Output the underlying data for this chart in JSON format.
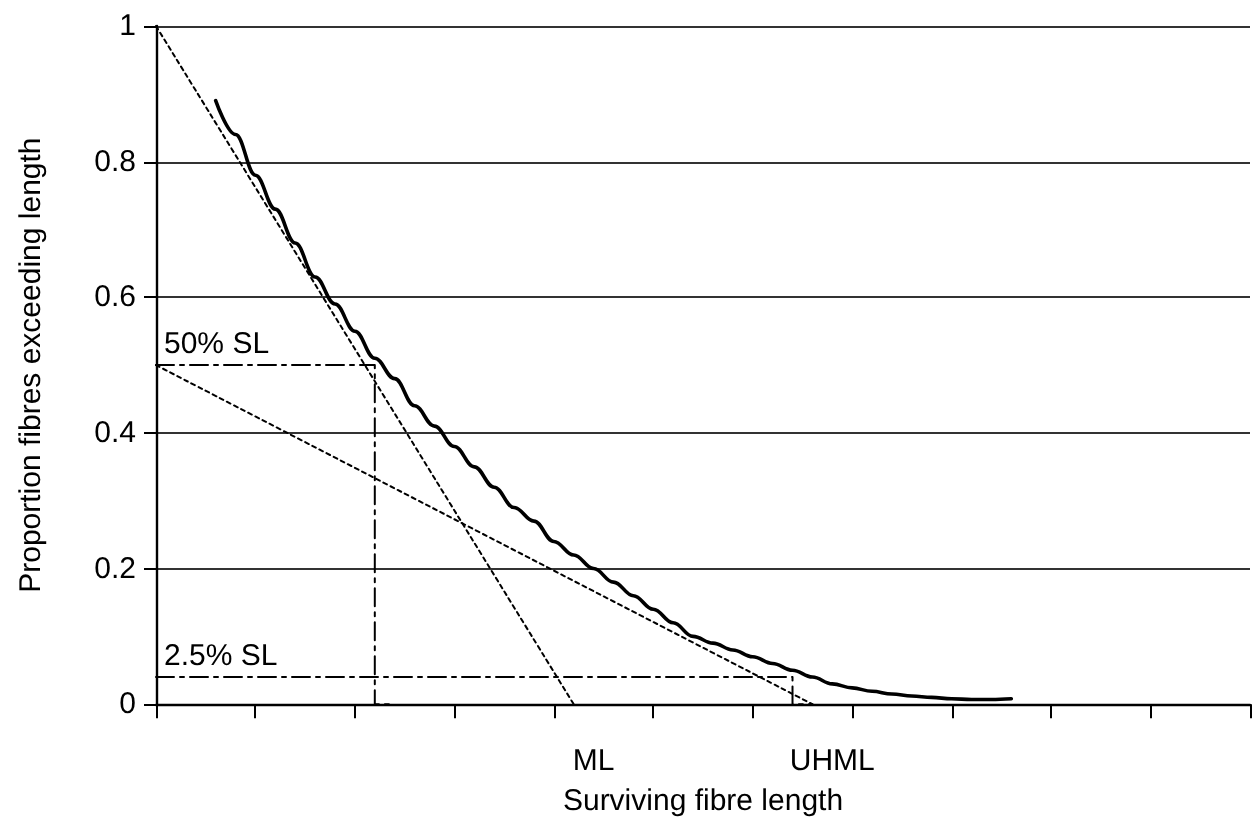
{
  "chart_data": {
    "type": "line",
    "xlabel": "Surviving fibre length",
    "ylabel": "Proportion fibres exceeding length",
    "categories": [
      null,
      null,
      null,
      null,
      null,
      null,
      null,
      null,
      null,
      null,
      null,
      null,
      null,
      null,
      null,
      null,
      null,
      null,
      null,
      null,
      null,
      null,
      "ML",
      null,
      null,
      null,
      null,
      null,
      null,
      null,
      null,
      null,
      null,
      null,
      "UHML",
      null,
      null,
      null,
      null,
      null,
      null,
      null,
      null,
      null,
      null,
      null,
      null,
      null,
      null,
      null,
      null,
      null,
      null,
      null,
      null,
      null
    ],
    "ylim": [
      0,
      1
    ],
    "yticks": [
      0,
      0.2,
      0.4,
      0.6,
      0.8,
      1
    ],
    "grid": "y",
    "marker": "none",
    "series": [
      {
        "type": "line",
        "color": "#000000",
        "line_style": "solid",
        "values": [
          null,
          null,
          null,
          0.89,
          0.84,
          0.78,
          0.73,
          0.68,
          0.63,
          0.59,
          0.55,
          0.51,
          0.48,
          0.44,
          0.41,
          0.38,
          0.35,
          0.32,
          0.29,
          0.27,
          0.24,
          0.22,
          0.2,
          0.18,
          0.16,
          0.14,
          0.12,
          0.1,
          0.09,
          0.08,
          0.07,
          0.06,
          0.05,
          0.04,
          0.03,
          0.024,
          0.019,
          0.015,
          0.012,
          0.01,
          0.008,
          0.007,
          0.007,
          0.008,
          null,
          null,
          null,
          null,
          null,
          null,
          null,
          null,
          null,
          null,
          null,
          null
        ]
      },
      {
        "type": "line",
        "color": "#000000",
        "line_style": "dotted",
        "values": [
          1,
          null,
          null,
          null,
          null,
          null,
          null,
          null,
          null,
          null,
          null,
          null,
          null,
          null,
          null,
          null,
          null,
          null,
          null,
          null,
          null,
          0,
          null,
          null,
          null,
          null,
          null,
          null,
          null,
          null,
          null,
          null,
          null,
          null,
          null,
          null,
          null,
          null,
          null,
          null,
          null,
          null,
          null,
          null,
          null,
          null,
          null,
          null,
          null,
          null,
          null,
          null,
          null,
          null,
          null,
          null
        ]
      },
      {
        "type": "line",
        "color": "#000000",
        "line_style": "dotted",
        "values": [
          0.5,
          null,
          null,
          null,
          null,
          null,
          null,
          null,
          null,
          null,
          null,
          null,
          null,
          null,
          null,
          null,
          null,
          null,
          null,
          null,
          null,
          null,
          null,
          null,
          null,
          null,
          null,
          null,
          null,
          null,
          null,
          null,
          null,
          0,
          null,
          null,
          null,
          null,
          null,
          null,
          null,
          null,
          null,
          null,
          null,
          null,
          null,
          null,
          null,
          null,
          null,
          null,
          null,
          null,
          null,
          null
        ]
      },
      {
        "type": "step",
        "name": "50% SL",
        "color": "#000000",
        "line_style": "dashed",
        "values": [
          0.5,
          0.5,
          0.5,
          0.5,
          0.5,
          0.5,
          0.5,
          0.5,
          0.5,
          0.5,
          0.5,
          0.5,
          0,
          null,
          null,
          null,
          null,
          null,
          null,
          null,
          null,
          null,
          null,
          null,
          null,
          null,
          null,
          null,
          null,
          null,
          null,
          null,
          null,
          null,
          null,
          null,
          null,
          null,
          null,
          null,
          null,
          null,
          null,
          null,
          null,
          null,
          null,
          null,
          null,
          null,
          null,
          null,
          null,
          null,
          null,
          null
        ]
      },
      {
        "type": "step",
        "name": "2.5% SL",
        "color": "#000000",
        "line_style": "dashed",
        "values": [
          0.04,
          0.04,
          0.04,
          0.04,
          0.04,
          0.04,
          0.04,
          0.04,
          0.04,
          0.04,
          0.04,
          0.04,
          0.04,
          0.04,
          0.04,
          0.04,
          0.04,
          0.04,
          0.04,
          0.04,
          0.04,
          0.04,
          0.04,
          0.04,
          0.04,
          0.04,
          0.04,
          0.04,
          0.04,
          0.04,
          0.04,
          0.04,
          0.04,
          0,
          null,
          null,
          null,
          null,
          null,
          null,
          null,
          null,
          null,
          null,
          null,
          null,
          null,
          null,
          null,
          null,
          null,
          null,
          null,
          null,
          null,
          null
        ]
      }
    ]
  }
}
